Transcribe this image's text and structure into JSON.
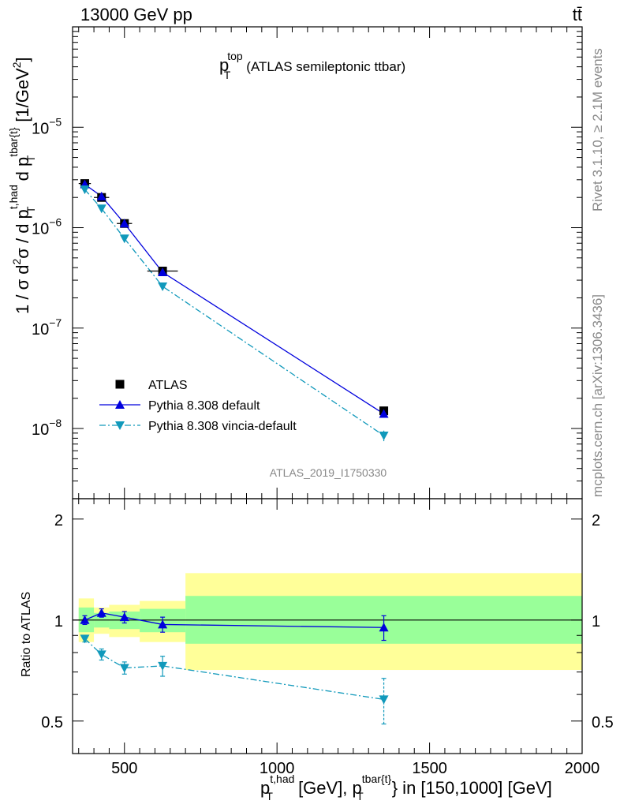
{
  "header": {
    "beam": "13000 GeV pp",
    "process": "tt̄"
  },
  "side": {
    "rivet": "Rivet 3.1.10, ≥ 2.1M events",
    "mcplots": "mcplots.cern.ch [arXiv:1306.3436]"
  },
  "plot_title_main": "p",
  "plot_title_sup": "top",
  "plot_title_sub": "T",
  "plot_title_rest": "(ATLAS semileptonic ttbar)",
  "analysis_id": "ATLAS_2019_I1750330",
  "legend": [
    {
      "label": "ATLAS"
    },
    {
      "label": "Pythia 8.308 default"
    },
    {
      "label": "Pythia 8.308 vincia-default"
    }
  ],
  "y_axis_label": {
    "p1": "1 / σ d",
    "p1sup": "2",
    "p2": "σ / d p",
    "p2sup": "t,had",
    "p2sub": "T",
    "p3": " d p",
    "p3sup": "tbar{t}",
    "p3sub": "T",
    "p4": " [1/GeV",
    "p4sup": "2",
    "p5": "]"
  },
  "x_axis_label": {
    "p1": "p",
    "p1sup": "t,had",
    "p1sub": "T",
    "p2": " [GeV], p",
    "p2sup": "tbar{t}",
    "p2sub": "T",
    "p3": "} in [150,1000] [GeV]"
  },
  "ratio_ylabel": "Ratio to ATLAS",
  "chart_data": [
    {
      "type": "scatter",
      "name": "main",
      "xlim": [
        330,
        2000
      ],
      "ylim": [
        2e-09,
        0.0001
      ],
      "ylog": true,
      "yticks": [
        {
          "v": 1e-05,
          "mant": "10",
          "exp": "−5"
        },
        {
          "v": 1e-06,
          "mant": "10",
          "exp": "−6"
        },
        {
          "v": 1e-07,
          "mant": "10",
          "exp": "−7"
        },
        {
          "v": 1e-08,
          "mant": "10",
          "exp": "−8"
        }
      ],
      "series": [
        {
          "name": "ATLAS",
          "color": "#000000",
          "x": [
            370,
            425,
            500,
            625,
            1350
          ],
          "xerr": [
            20,
            25,
            25,
            50,
            0
          ],
          "y": [
            2.75e-06,
            2e-06,
            1.1e-06,
            3.7e-07,
            1.5e-08
          ]
        },
        {
          "name": "Pythia 8.308 default",
          "color": "#0000dd",
          "x": [
            370,
            425,
            500,
            625,
            1350
          ],
          "y": [
            2.7e-06,
            2.05e-06,
            1.1e-06,
            3.6e-07,
            1.4e-08
          ]
        },
        {
          "name": "Pythia 8.308 vincia-default",
          "color": "#1199bb",
          "x": [
            370,
            425,
            500,
            625,
            1350
          ],
          "y": [
            2.4e-06,
            1.55e-06,
            7.8e-07,
            2.6e-07,
            8.5e-09
          ],
          "yerr_rel": [
            0.03,
            0.03,
            0.04,
            0.05,
            0.12
          ]
        }
      ]
    },
    {
      "type": "scatter",
      "name": "ratio",
      "xlim": [
        330,
        2000
      ],
      "ylim": [
        0.4,
        2.3
      ],
      "ylog": true,
      "yticks": [
        {
          "v": 0.5,
          "label": "0.5"
        },
        {
          "v": 1,
          "label": "1"
        },
        {
          "v": 2,
          "label": "2"
        }
      ],
      "xticks": [
        {
          "v": 500,
          "label": "500"
        },
        {
          "v": 1000,
          "label": "1000"
        },
        {
          "v": 1500,
          "label": "1500"
        },
        {
          "v": 2000,
          "label": "2000"
        }
      ],
      "bands": [
        {
          "x0": 350,
          "x1": 400,
          "y0_inner": 0.92,
          "y1_inner": 1.09,
          "y0_outer": 0.86,
          "y1_outer": 1.16
        },
        {
          "x0": 400,
          "x1": 450,
          "y0_inner": 0.95,
          "y1_inner": 1.05,
          "y0_outer": 0.91,
          "y1_outer": 1.09
        },
        {
          "x0": 450,
          "x1": 550,
          "y0_inner": 0.94,
          "y1_inner": 1.06,
          "y0_outer": 0.89,
          "y1_outer": 1.11
        },
        {
          "x0": 550,
          "x1": 700,
          "y0_inner": 0.92,
          "y1_inner": 1.08,
          "y0_outer": 0.86,
          "y1_outer": 1.14
        },
        {
          "x0": 700,
          "x1": 2000,
          "y0_inner": 0.85,
          "y1_inner": 1.18,
          "y0_outer": 0.71,
          "y1_outer": 1.38
        }
      ],
      "series": [
        {
          "name": "Pythia 8.308 default",
          "color": "#0000dd",
          "x": [
            370,
            425,
            500,
            625,
            1350
          ],
          "y": [
            1.0,
            1.05,
            1.02,
            0.97,
            0.95
          ],
          "yerr": [
            0.03,
            0.03,
            0.04,
            0.05,
            0.08
          ]
        },
        {
          "name": "Pythia 8.308 vincia-default",
          "color": "#1199bb",
          "x": [
            370,
            425,
            500,
            625,
            1350
          ],
          "y": [
            0.88,
            0.79,
            0.72,
            0.73,
            0.58
          ],
          "yerr": [
            0.02,
            0.03,
            0.03,
            0.05,
            0.09
          ]
        }
      ]
    }
  ]
}
